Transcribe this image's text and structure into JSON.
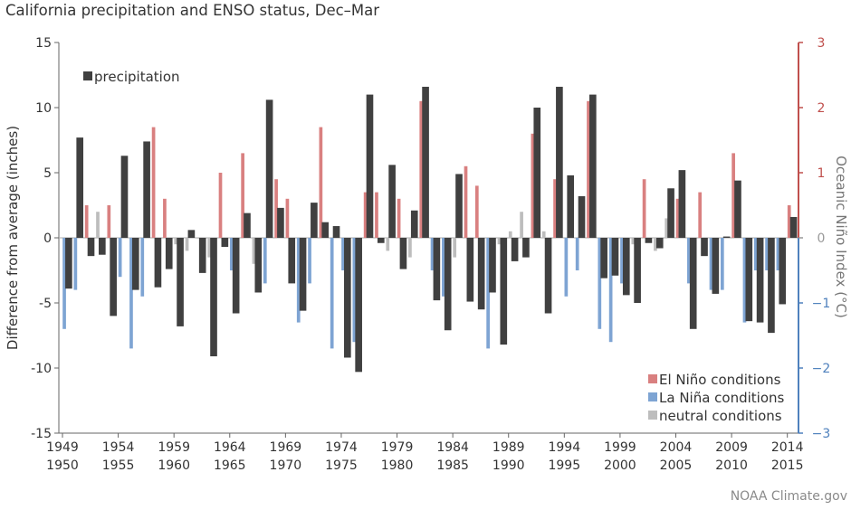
{
  "chart_data": {
    "type": "bar",
    "title": "California precipitation and ENSO status, Dec–Mar",
    "ylabel": "Difference from average (inches)",
    "y2label": "Oceanic Niño Index (°C)",
    "ylim": [
      -15,
      15
    ],
    "y2lim": [
      -3,
      3
    ],
    "yticks": [
      -15,
      -10,
      -5,
      0,
      5,
      10,
      15
    ],
    "y2ticks": [
      -3,
      -2,
      -1,
      0,
      1,
      2,
      3
    ],
    "x_start": 1950,
    "x_end": 2015,
    "tick_labels": [
      {
        "top": "1949",
        "bottom": "1950"
      },
      {
        "top": "1954",
        "bottom": "1955"
      },
      {
        "top": "1959",
        "bottom": "1960"
      },
      {
        "top": "1964",
        "bottom": "1965"
      },
      {
        "top": "1969",
        "bottom": "1970"
      },
      {
        "top": "1974",
        "bottom": "1975"
      },
      {
        "top": "1979",
        "bottom": "1980"
      },
      {
        "top": "1984",
        "bottom": "1985"
      },
      {
        "top": "1989",
        "bottom": "1990"
      },
      {
        "top": "1994",
        "bottom": "1995"
      },
      {
        "top": "1999",
        "bottom": "2000"
      },
      {
        "top": "2004",
        "bottom": "2005"
      },
      {
        "top": "2009",
        "bottom": "2010"
      },
      {
        "top": "2014",
        "bottom": "2015"
      }
    ],
    "series": [
      {
        "name": "precipitation",
        "color": "#404040",
        "values": [
          -3.9,
          7.7,
          -1.4,
          -1.3,
          -6.0,
          6.3,
          -4.0,
          7.4,
          -3.8,
          -2.4,
          -6.8,
          0.6,
          -2.7,
          -9.1,
          -0.7,
          -5.8,
          1.9,
          -4.2,
          10.6,
          2.3,
          -3.5,
          -5.6,
          2.7,
          1.2,
          0.9,
          -9.2,
          -10.3,
          11.0,
          -0.4,
          5.6,
          -2.4,
          2.1,
          11.6,
          -4.8,
          -7.1,
          4.9,
          -4.9,
          -5.5,
          -4.2,
          -8.2,
          -1.8,
          -1.5,
          10.0,
          -5.8,
          11.6,
          4.8,
          3.2,
          11.0,
          -3.1,
          -2.9,
          -4.4,
          -5.0,
          -0.4,
          -0.8,
          3.8,
          5.2,
          -7.0,
          -1.4,
          -4.3,
          0.1,
          4.4,
          -6.4,
          -6.5,
          -7.3,
          -5.1,
          1.6
        ]
      },
      {
        "name": "Oceanic Niño Index",
        "colors": {
          "El Niño conditions": "#d98080",
          "La Niña conditions": "#7ea4d3",
          "neutral conditions": "#bdbdbd"
        },
        "values": [
          -1.4,
          -0.8,
          0.5,
          0.4,
          0.5,
          -0.6,
          -1.7,
          -0.9,
          1.7,
          0.6,
          -0.1,
          -0.2,
          0.0,
          -0.3,
          1.0,
          -0.5,
          1.3,
          -0.4,
          -0.7,
          0.9,
          0.6,
          -1.3,
          -0.7,
          1.7,
          -1.7,
          -0.5,
          -1.6,
          0.7,
          0.7,
          -0.2,
          0.6,
          -0.3,
          2.1,
          -0.5,
          -0.9,
          -0.3,
          1.1,
          0.8,
          -1.7,
          -0.1,
          0.1,
          0.4,
          1.6,
          0.1,
          0.9,
          -0.9,
          -0.5,
          2.1,
          -1.4,
          -1.6,
          -0.7,
          -0.1,
          0.9,
          -0.2,
          0.3,
          0.6,
          -0.7,
          0.7,
          -0.8,
          -0.8,
          1.3,
          -1.3,
          -0.5,
          -0.5,
          -0.5,
          0.5
        ]
      }
    ],
    "legend": [
      {
        "label": "precipitation",
        "color": "#404040",
        "placement": "top-left"
      },
      {
        "label": "El Niño conditions",
        "color": "#d98080",
        "placement": "bottom-right"
      },
      {
        "label": "La Niña conditions",
        "color": "#7ea4d3",
        "placement": "bottom-right"
      },
      {
        "label": "neutral conditions",
        "color": "#bdbdbd",
        "placement": "bottom-right"
      }
    ],
    "grid": false
  },
  "credit": "NOAA Climate.gov"
}
